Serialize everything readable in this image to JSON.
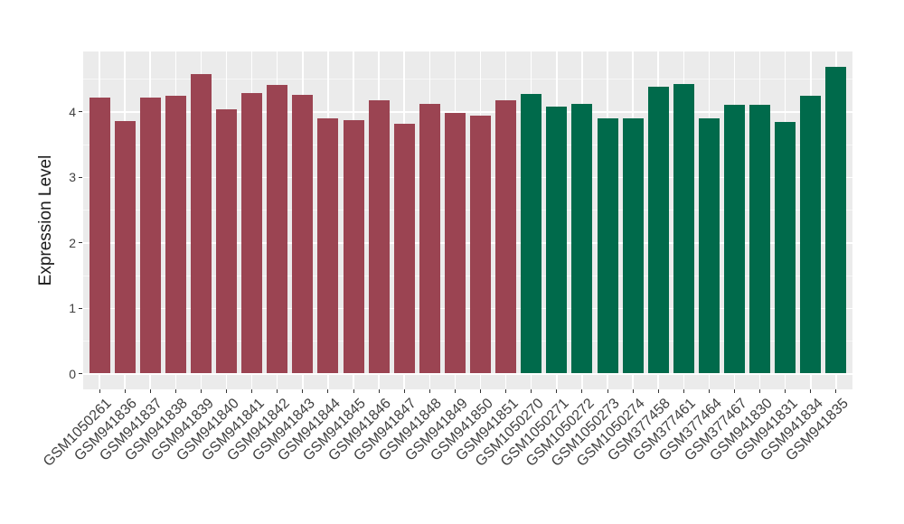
{
  "figure": {
    "background": "#FFFFFF"
  },
  "chart_data": {
    "type": "bar",
    "title": "",
    "xlabel": "",
    "ylabel": "Expression Level",
    "ylim": [
      -0.25,
      4.92
    ],
    "yticks": [
      0,
      1,
      2,
      3,
      4
    ],
    "grid": "horizontal major+minor white gridlines and vertical major gridlines at category centers, on grey panel",
    "legend_position": "none",
    "categories": [
      "GSM1050261",
      "GSM941836",
      "GSM941837",
      "GSM941838",
      "GSM941839",
      "GSM941840",
      "GSM941841",
      "GSM941842",
      "GSM941843",
      "GSM941844",
      "GSM941845",
      "GSM941846",
      "GSM941847",
      "GSM941848",
      "GSM941849",
      "GSM941850",
      "GSM941851",
      "GSM1050270",
      "GSM1050271",
      "GSM1050272",
      "GSM1050273",
      "GSM1050274",
      "GSM377458",
      "GSM377461",
      "GSM377464",
      "GSM377467",
      "GSM941830",
      "GSM941831",
      "GSM941834",
      "GSM941835"
    ],
    "values": [
      4.21,
      3.86,
      4.21,
      4.24,
      4.57,
      4.04,
      4.28,
      4.41,
      4.26,
      3.9,
      3.87,
      4.17,
      3.82,
      4.12,
      3.98,
      3.94,
      4.18,
      4.27,
      4.08,
      4.12,
      3.9,
      3.9,
      4.38,
      4.43,
      3.9,
      4.1,
      4.1,
      3.85,
      4.25,
      4.69
    ],
    "groups": [
      {
        "color": "#9B4452",
        "count": 17
      },
      {
        "color": "#006A4B",
        "count": 13
      }
    ]
  },
  "colors": {
    "panel_background": "#EBEBEB",
    "grid_major": "#FFFFFF",
    "grid_minor": "rgba(255,255,255,0.6)",
    "tick_mark": "#333333",
    "tick_text": "#404040",
    "axis_title_text": "#1A1A1A"
  }
}
